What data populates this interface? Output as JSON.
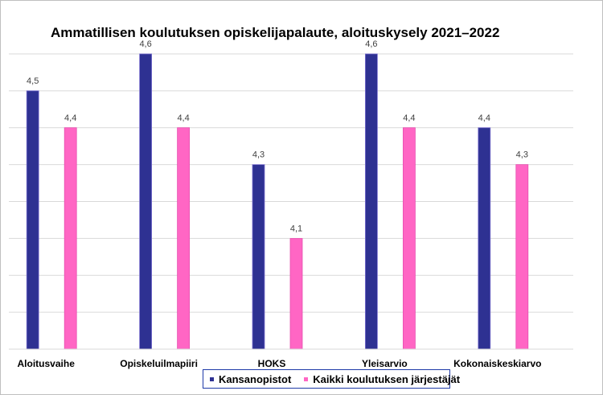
{
  "chart_data": {
    "type": "bar",
    "title": "Ammatillisen koulutuksen opiskelijapalaute, aloituskysely 2021–2022",
    "categories": [
      "Aloitusvaihe",
      "Opiskeluilmapiiri",
      "HOKS",
      "Yleisarvio",
      "Kokonaiskeskiarvo"
    ],
    "series": [
      {
        "name": "Kansanopistot",
        "color": "#2e3192",
        "values": [
          4.5,
          4.6,
          4.3,
          4.6,
          4.4
        ],
        "labels": [
          "4,5",
          "4,6",
          "4,3",
          "4,6",
          "4,4"
        ]
      },
      {
        "name": "Kaikki koulutuksen järjestäjät",
        "color": "#ff66c4",
        "values": [
          4.4,
          4.4,
          4.1,
          4.4,
          4.3
        ],
        "labels": [
          "4,4",
          "4,4",
          "4,1",
          "4,4",
          "4,3"
        ]
      }
    ],
    "ylim": [
      3.8,
      4.6
    ],
    "grid": true,
    "legend": "bottom"
  }
}
